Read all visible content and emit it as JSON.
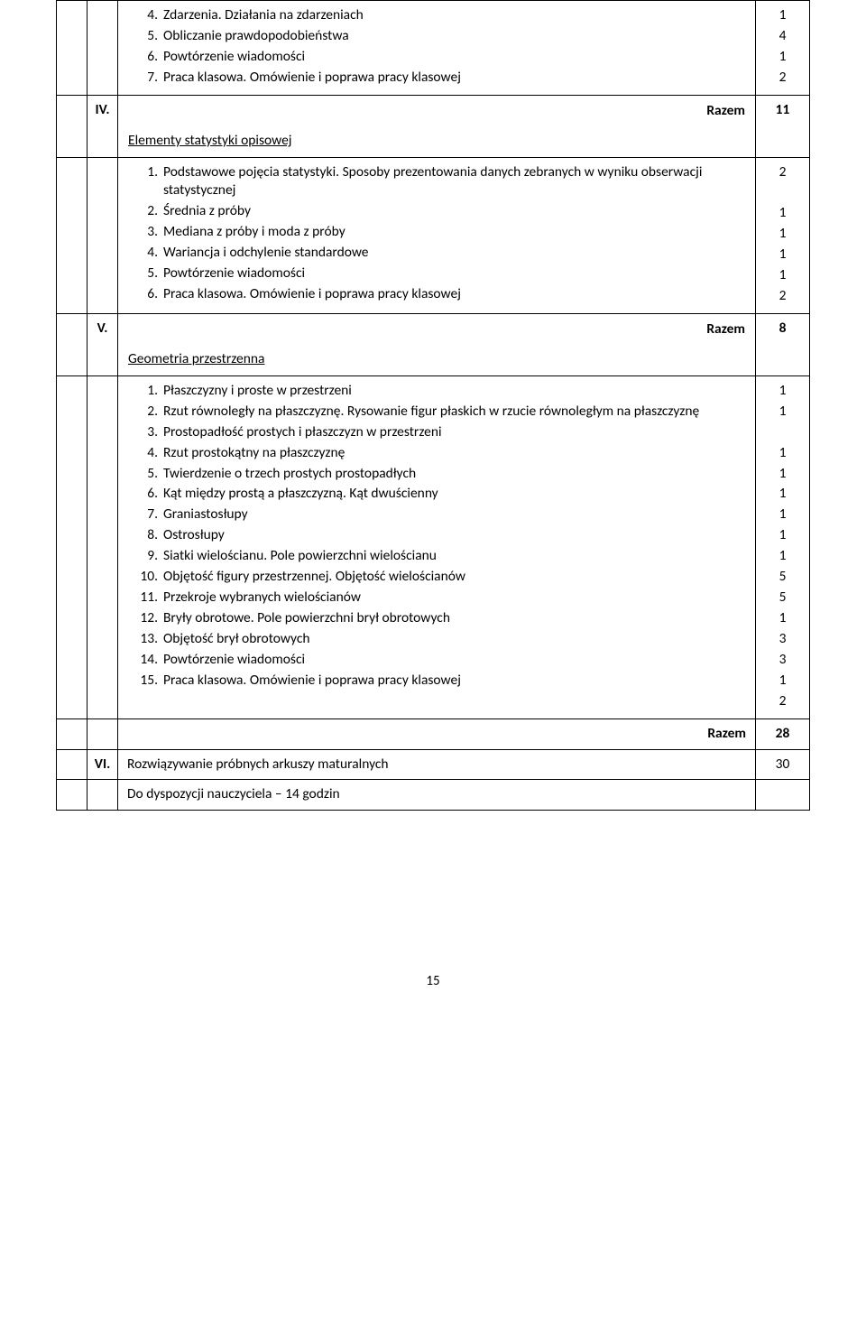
{
  "continuation": {
    "items": [
      {
        "n": "4.",
        "text": "Zdarzenia. Działania na zdarzeniach",
        "val": "1"
      },
      {
        "n": "5.",
        "text": "Obliczanie prawdopodobieństwa",
        "val": "4"
      },
      {
        "n": "6.",
        "text": "Powtórzenie wiadomości",
        "val": "1"
      },
      {
        "n": "7.",
        "text": "Praca klasowa. Omówienie i poprawa pracy klasowej",
        "val": "2"
      }
    ]
  },
  "razem_label": "Razem",
  "sections": [
    {
      "roman": "IV.",
      "title": "Elementy statystyki opisowej",
      "razem_before": "11",
      "items": [
        {
          "n": "1.",
          "text": "Podstawowe pojęcia statystyki. Sposoby prezentowania danych zebranych w wyniku obserwacji statystycznej",
          "val": "2"
        },
        {
          "n": "2.",
          "text": "Średnia z próby",
          "val": "1"
        },
        {
          "n": "3.",
          "text": "Mediana z próby i moda z próby",
          "val": "1"
        },
        {
          "n": "4.",
          "text": "Wariancja i odchylenie standardowe",
          "val": "1"
        },
        {
          "n": "5.",
          "text": "Powtórzenie wiadomości",
          "val": "1"
        },
        {
          "n": "6.",
          "text": "Praca klasowa. Omówienie i poprawa pracy klasowej",
          "val": "2"
        }
      ]
    },
    {
      "roman": "V.",
      "title": "Geometria przestrzenna",
      "razem_before": "8",
      "items": [
        {
          "n": "1.",
          "text": "Płaszczyzny i proste w przestrzeni",
          "val": "1"
        },
        {
          "n": "2.",
          "text": "Rzut równoległy na płaszczyznę. Rysowanie figur płaskich w rzucie równoległym na płaszczyznę",
          "val": "1"
        },
        {
          "n": "3.",
          "text": "Prostopadłość prostych i płaszczyzn w przestrzeni",
          "val": "1"
        },
        {
          "n": "4.",
          "text": "Rzut prostokątny na płaszczyznę",
          "val": "1"
        },
        {
          "n": "5.",
          "text": "Twierdzenie o trzech prostych prostopadłych",
          "val": "1"
        },
        {
          "n": "6.",
          "text": "Kąt między prostą a płaszczyzną. Kąt dwuścienny",
          "val": "1"
        },
        {
          "n": "7.",
          "text": "Graniastosłupy",
          "val": "1"
        },
        {
          "n": "8.",
          "text": "Ostrosłupy",
          "val": "1"
        },
        {
          "n": "9.",
          "text": "Siatki wielościanu. Pole powierzchni wielościanu",
          "val": "5"
        },
        {
          "n": "10.",
          "text": "Objętość figury przestrzennej. Objętość wielościanów",
          "val": "5"
        },
        {
          "n": "11.",
          "text": "Przekroje wybranych wielościanów",
          "val": "1"
        },
        {
          "n": "12.",
          "text": "Bryły obrotowe. Pole powierzchni brył obrotowych",
          "val": "3"
        },
        {
          "n": "13.",
          "text": "Objętość brył obrotowych",
          "val": "3"
        },
        {
          "n": "14.",
          "text": "Powtórzenie wiadomości",
          "val": "1"
        },
        {
          "n": "15.",
          "text": "Praca klasowa. Omówienie i poprawa pracy klasowej",
          "val": "2"
        }
      ]
    }
  ],
  "final_razem": "28",
  "row_vi": {
    "roman": "VI.",
    "text": "Rozwiązywanie próbnych arkuszy maturalnych",
    "val": "30"
  },
  "row_extra": {
    "text": "Do dyspozycji nauczyciela – 14 godzin"
  },
  "page_number": "15"
}
